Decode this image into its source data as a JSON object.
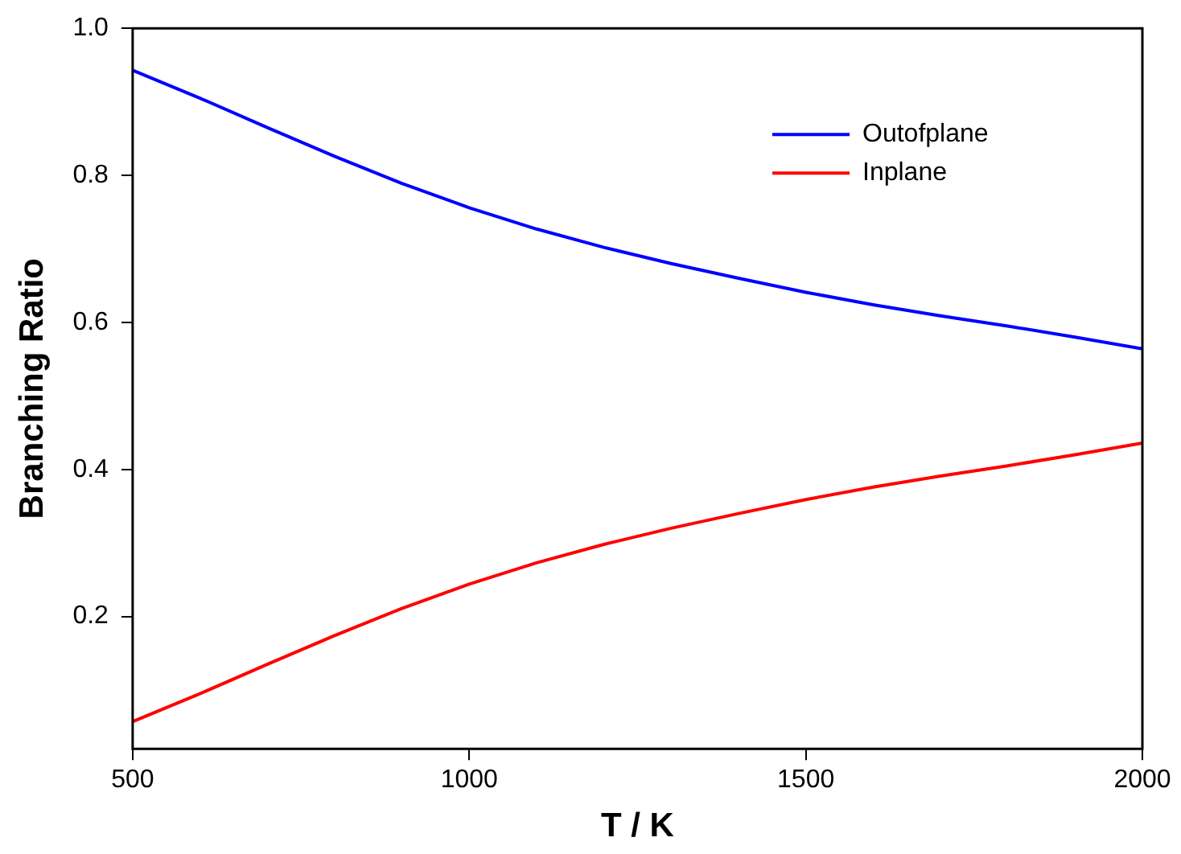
{
  "chart_data": {
    "type": "line",
    "xlabel": "T / K",
    "ylabel": "Branching Ratio",
    "xlim": [
      500,
      2000
    ],
    "ylim": [
      0.02,
      1.0
    ],
    "xticks": [
      500,
      1000,
      1500,
      2000
    ],
    "yticks": [
      {
        "value": 0.2,
        "label": "0.2"
      },
      {
        "value": 0.4,
        "label": "0.4"
      },
      {
        "value": 0.6,
        "label": "0.6"
      },
      {
        "value": 0.8,
        "label": "0.8"
      },
      {
        "value": 1.0,
        "label": "1.0"
      }
    ],
    "grid": false,
    "legend": "top right",
    "marker": "none",
    "line_style": "solid",
    "x": [
      500,
      600,
      700,
      800,
      900,
      1000,
      1100,
      1200,
      1300,
      1400,
      1500,
      1600,
      1700,
      1800,
      1900,
      2000
    ],
    "series": [
      {
        "name": "Outofplane",
        "color": "#0000ff",
        "values": [
          0.943,
          0.905,
          0.865,
          0.826,
          0.789,
          0.756,
          0.727,
          0.702,
          0.68,
          0.66,
          0.641,
          0.624,
          0.609,
          0.595,
          0.58,
          0.564
        ]
      },
      {
        "name": "Inplane",
        "color": "#ff0000",
        "values": [
          0.057,
          0.095,
          0.135,
          0.174,
          0.211,
          0.244,
          0.273,
          0.298,
          0.32,
          0.34,
          0.359,
          0.376,
          0.391,
          0.405,
          0.42,
          0.436
        ]
      }
    ]
  }
}
